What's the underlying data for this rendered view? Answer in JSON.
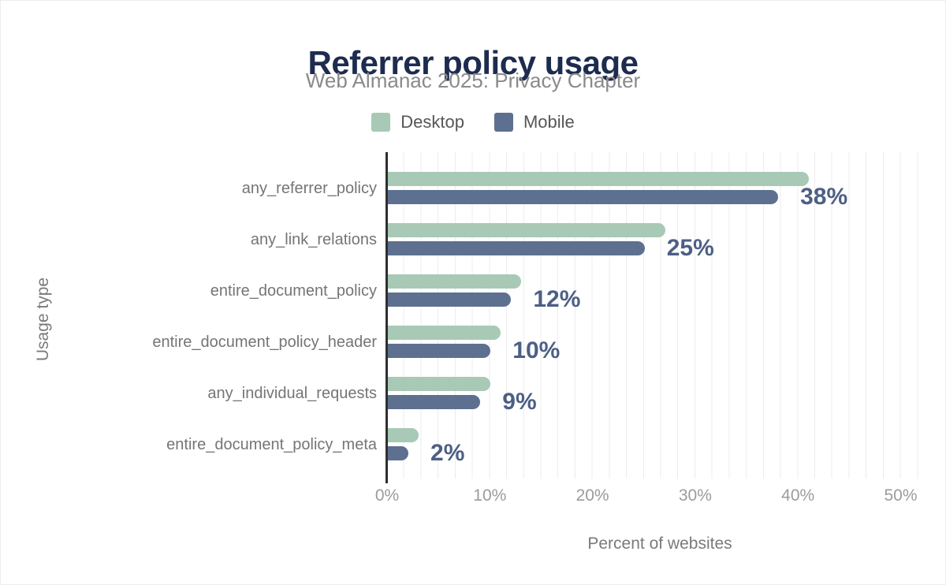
{
  "title": "Referrer policy usage",
  "subtitle": "Web Almanac 2025: Privacy Chapter",
  "chart_data": {
    "type": "bar",
    "orientation": "horizontal",
    "title": "Referrer policy usage",
    "subtitle": "Web Almanac 2025: Privacy Chapter",
    "categories": [
      "any_referrer_policy",
      "any_link_relations",
      "entire_document_policy",
      "entire_document_policy_header",
      "any_individual_requests",
      "entire_document_policy_meta"
    ],
    "series": [
      {
        "name": "Desktop",
        "color": "#a7c9b5",
        "values": [
          41,
          27,
          13,
          11,
          10,
          3
        ]
      },
      {
        "name": "Mobile",
        "color": "#5d7090",
        "values": [
          38,
          25,
          12,
          10,
          9,
          2
        ]
      }
    ],
    "value_labels": {
      "labeled_series": "Mobile",
      "texts": [
        "38%",
        "25%",
        "12%",
        "10%",
        "9%",
        "2%"
      ],
      "color": "#4c5f85"
    },
    "xlabel": "Percent of websites",
    "ylabel": "Usage type",
    "x_ticks": [
      {
        "value": 0,
        "label": "0%"
      },
      {
        "value": 10,
        "label": "10%"
      },
      {
        "value": 20,
        "label": "20%"
      },
      {
        "value": 30,
        "label": "30%"
      },
      {
        "value": 40,
        "label": "40%"
      },
      {
        "value": 50,
        "label": "50%"
      }
    ],
    "xlim": [
      0,
      53
    ],
    "grid": "vertical-minor-light",
    "legend_position": "top-center"
  }
}
